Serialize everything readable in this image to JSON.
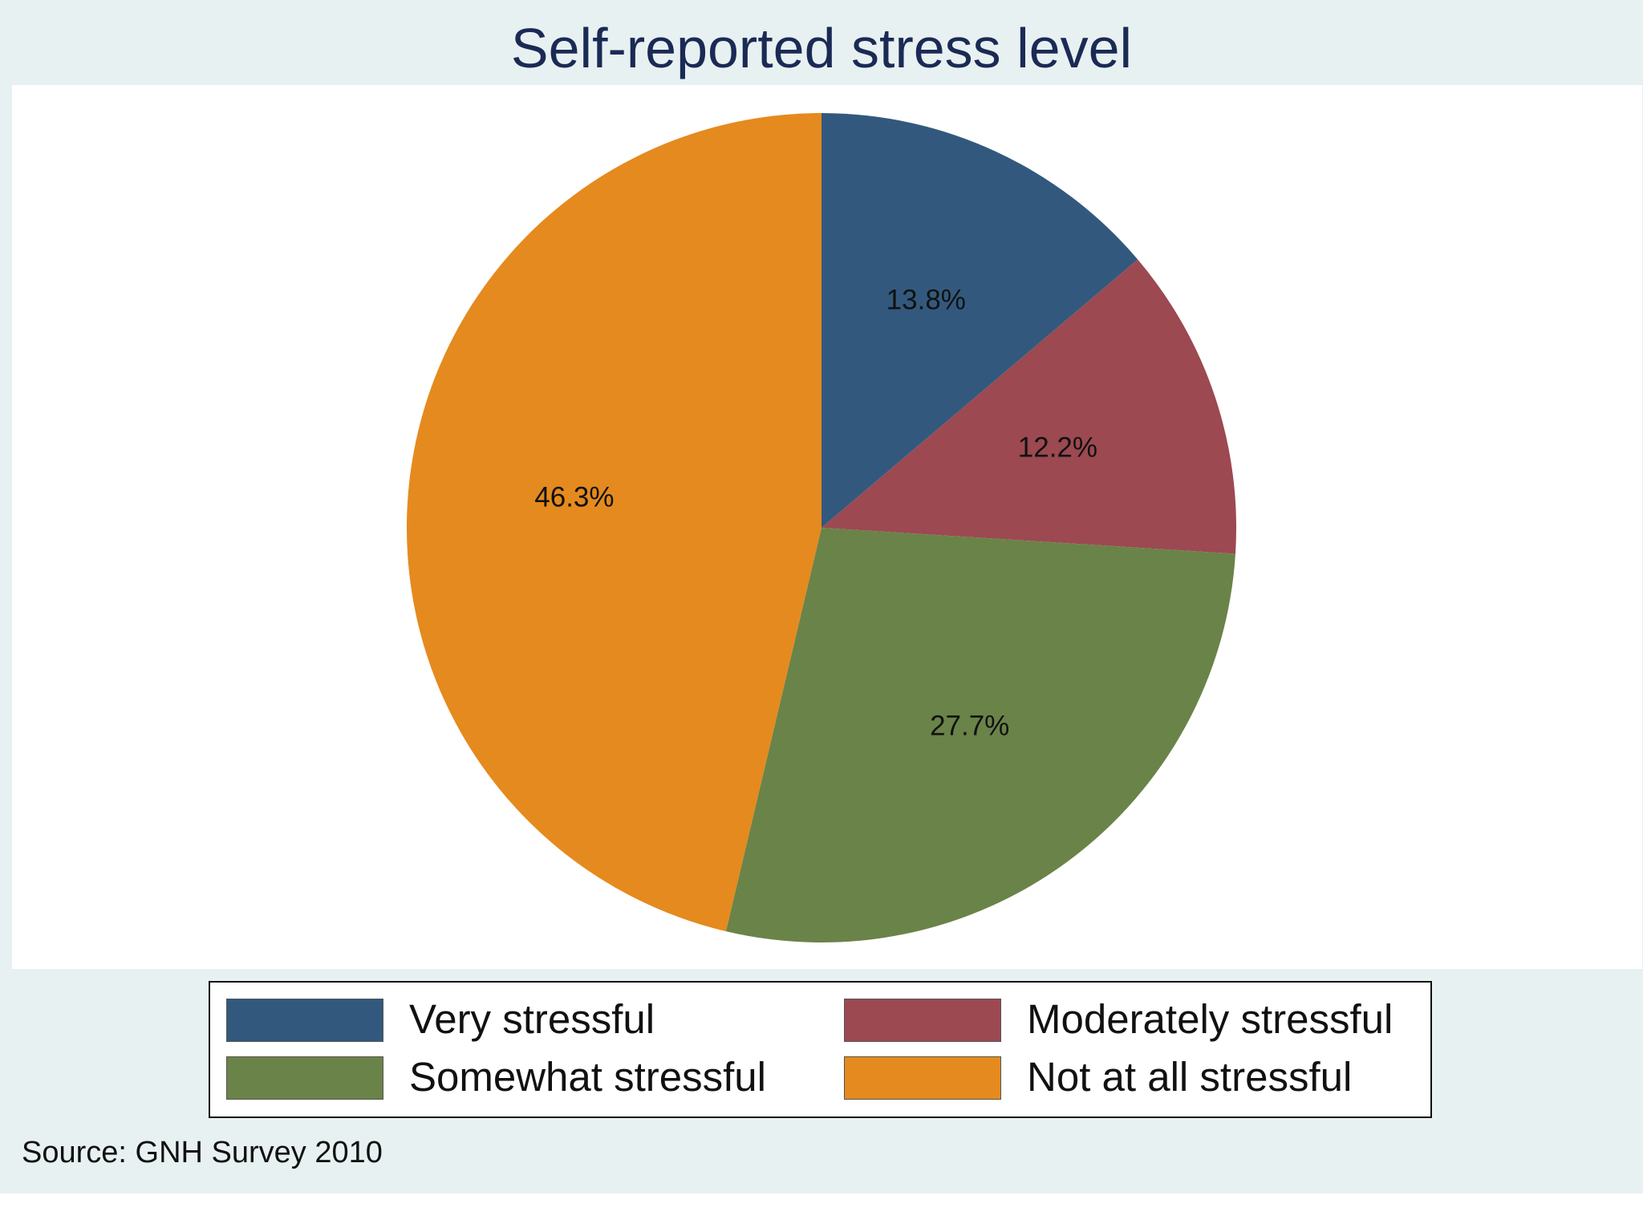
{
  "colors": {
    "frame_bg": "#e8f1f1",
    "title": "#1b2a55"
  },
  "chart_data": {
    "type": "pie",
    "title": "Self-reported stress level",
    "categories": [
      "Very stressful",
      "Moderately stressful",
      "Somewhat stressful",
      "Not at all stressful"
    ],
    "values": [
      13.8,
      12.2,
      27.7,
      46.3
    ],
    "labels": [
      "13.8%",
      "12.2%",
      "27.7%",
      "46.3%"
    ],
    "colors": [
      "#32597d",
      "#9c4951",
      "#6a8348",
      "#e58a1e"
    ],
    "start_angle": "12 o'clock",
    "direction": "clockwise",
    "legend_position": "bottom",
    "legend_columns": 2,
    "source": "Source: GNH Survey 2010"
  }
}
